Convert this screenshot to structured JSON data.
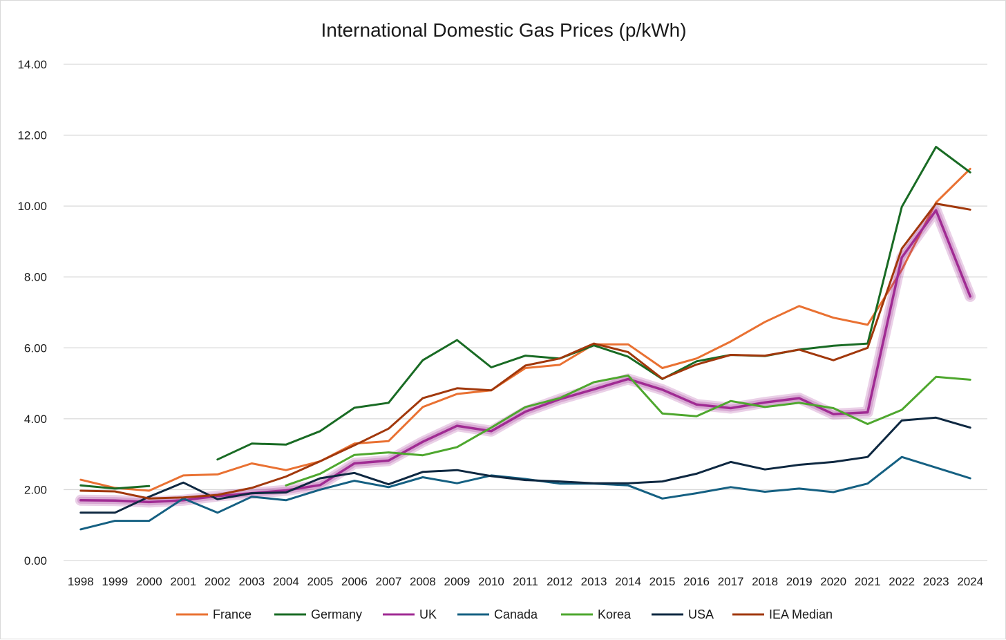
{
  "chart_data": {
    "type": "line",
    "title": "International Domestic Gas Prices (p/kWh)",
    "xlabel": "",
    "ylabel": "",
    "ylim": [
      0,
      14
    ],
    "yticks": [
      "0.00",
      "2.00",
      "4.00",
      "6.00",
      "8.00",
      "10.00",
      "12.00",
      "14.00"
    ],
    "categories": [
      "1998",
      "1999",
      "2000",
      "2001",
      "2002",
      "2003",
      "2004",
      "2005",
      "2006",
      "2007",
      "2008",
      "2009",
      "2010",
      "2011",
      "2012",
      "2013",
      "2014",
      "2015",
      "2016",
      "2017",
      "2018",
      "2019",
      "2020",
      "2021",
      "2022",
      "2023",
      "2024"
    ],
    "grid": true,
    "legend_position": "bottom",
    "series": [
      {
        "name": "France",
        "color": "#E97132",
        "highlight": false,
        "values": [
          2.28,
          2.05,
          1.97,
          2.4,
          2.43,
          2.74,
          2.55,
          2.8,
          3.3,
          3.37,
          4.33,
          4.7,
          4.8,
          5.43,
          5.52,
          6.1,
          6.1,
          5.43,
          5.7,
          6.18,
          6.73,
          7.18,
          6.85,
          6.65,
          8.2,
          10.1,
          11.05
        ]
      },
      {
        "name": "Germany",
        "color": "#196B24",
        "highlight": false,
        "values": [
          2.12,
          2.03,
          2.1,
          null,
          2.85,
          3.3,
          3.27,
          3.65,
          4.31,
          4.45,
          5.65,
          6.22,
          5.45,
          5.78,
          5.7,
          6.07,
          5.75,
          5.12,
          5.62,
          5.8,
          5.77,
          5.95,
          6.06,
          6.12,
          9.98,
          11.67,
          10.95
        ]
      },
      {
        "name": "UK",
        "color": "#A02B93",
        "highlight": true,
        "values": [
          1.7,
          1.69,
          1.65,
          1.7,
          1.82,
          1.9,
          1.98,
          2.13,
          2.74,
          2.82,
          3.35,
          3.8,
          3.65,
          4.2,
          4.55,
          4.83,
          5.12,
          4.82,
          4.4,
          4.3,
          4.46,
          4.58,
          4.13,
          4.18,
          8.55,
          9.88,
          7.45
        ]
      },
      {
        "name": "Canada",
        "color": "#156082",
        "highlight": false,
        "values": [
          0.88,
          1.12,
          1.12,
          1.75,
          1.35,
          1.8,
          1.7,
          2.0,
          2.25,
          2.07,
          2.35,
          2.18,
          2.4,
          2.3,
          2.17,
          2.17,
          2.12,
          1.75,
          1.9,
          2.07,
          1.94,
          2.03,
          1.93,
          2.17,
          2.92,
          2.62,
          2.32
        ]
      },
      {
        "name": "Korea",
        "color": "#4EA72E",
        "highlight": false,
        "values": [
          null,
          null,
          null,
          null,
          null,
          null,
          2.12,
          2.45,
          2.98,
          3.05,
          2.97,
          3.2,
          3.75,
          4.33,
          4.58,
          5.03,
          5.22,
          4.15,
          4.07,
          4.5,
          4.33,
          4.45,
          4.3,
          3.85,
          4.25,
          5.18,
          5.1
        ]
      },
      {
        "name": "USA",
        "color": "#0E2841",
        "highlight": false,
        "values": [
          1.35,
          1.35,
          1.8,
          2.2,
          1.73,
          1.9,
          1.92,
          2.32,
          2.47,
          2.15,
          2.5,
          2.55,
          2.38,
          2.27,
          2.23,
          2.18,
          2.18,
          2.23,
          2.45,
          2.78,
          2.57,
          2.7,
          2.78,
          2.92,
          3.95,
          4.03,
          3.75
        ]
      },
      {
        "name": "IEA Median",
        "color": "#A1380C",
        "highlight": false,
        "values": [
          1.97,
          1.95,
          1.75,
          1.78,
          1.85,
          2.05,
          2.37,
          2.8,
          3.25,
          3.72,
          4.58,
          4.86,
          4.8,
          5.5,
          5.7,
          6.12,
          5.88,
          5.13,
          5.53,
          5.8,
          5.78,
          5.95,
          5.65,
          6.0,
          8.8,
          10.07,
          9.9
        ]
      }
    ]
  }
}
